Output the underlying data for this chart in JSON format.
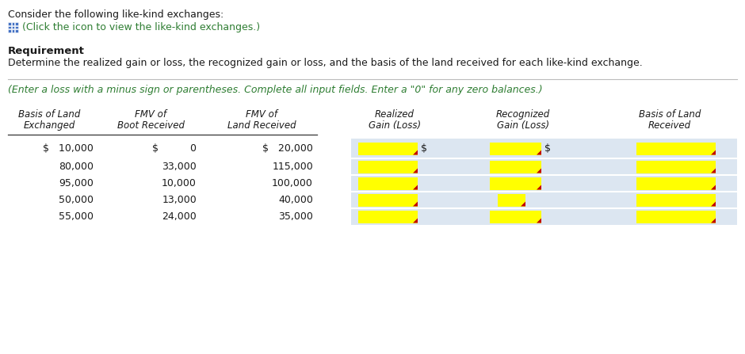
{
  "title_line1": "Consider the following like-kind exchanges:",
  "title_line2": "(Click the icon to view the like-kind exchanges.)",
  "req_label": "Requirement",
  "req_text": "Determine the realized gain or loss, the recognized gain or loss, and the basis of the land received for each like-kind exchange.",
  "instruction": "(Enter a loss with a minus sign or parentheses. Complete all input fields. Enter a \"0\" for any zero balances.)",
  "col_headers": [
    [
      "Basis of Land",
      "Exchanged"
    ],
    [
      "FMV of",
      "Boot Received"
    ],
    [
      "FMV of",
      "Land Received"
    ],
    [
      "Realized",
      "Gain (Loss)"
    ],
    [
      "Recognized",
      "Gain (Loss)"
    ],
    [
      "Basis of Land",
      "Received"
    ]
  ],
  "data_rows": [
    [
      "$   10,000",
      "$          0",
      "$   20,000"
    ],
    [
      "80,000",
      "33,000",
      "115,000"
    ],
    [
      "95,000",
      "10,000",
      "100,000"
    ],
    [
      "50,000",
      "13,000",
      "40,000"
    ],
    [
      "55,000",
      "24,000",
      "35,000"
    ]
  ],
  "bg_color": "#ffffff",
  "table_bg": "#dce6f1",
  "row_sep": "#ffffff",
  "yellow": "#ffff00",
  "red_corner": "#c00000",
  "text_color": "#1a1a1a",
  "green_text": "#2e7d32",
  "blue_icon": "#4472c4"
}
